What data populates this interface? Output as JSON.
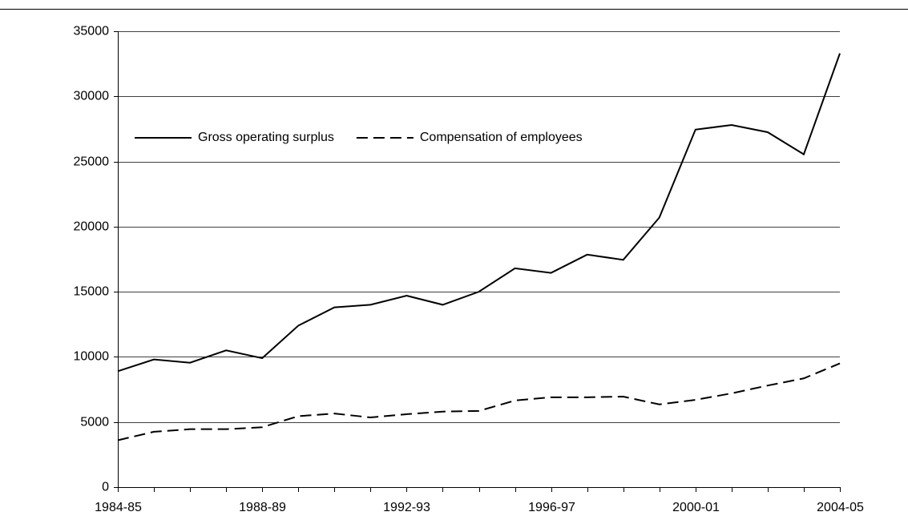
{
  "chart_data": {
    "type": "line",
    "categories": [
      "1984-85",
      null,
      null,
      null,
      "1988-89",
      null,
      null,
      null,
      "1992-93",
      null,
      null,
      null,
      "1996-97",
      null,
      null,
      null,
      "2000-01",
      null,
      null,
      null,
      "2004-05"
    ],
    "series": [
      {
        "name": "Gross operating surplus",
        "color": "#000000",
        "linestyle": "solid",
        "values": [
          8900,
          9800,
          9550,
          10500,
          9900,
          12400,
          13800,
          14000,
          14700,
          14000,
          15000,
          16800,
          16450,
          17850,
          17450,
          20700,
          27450,
          27800,
          27250,
          25550,
          33300
        ]
      },
      {
        "name": "Compensation of employees",
        "color": "#000000",
        "linestyle": "dashed",
        "values": [
          3600,
          4250,
          4450,
          4450,
          4600,
          5450,
          5650,
          5350,
          5600,
          5800,
          5850,
          6650,
          6900,
          6900,
          6950,
          6350,
          6700,
          7200,
          7800,
          8350,
          9500
        ]
      }
    ],
    "ylim": [
      0,
      35000
    ],
    "yticks": [
      0,
      5000,
      10000,
      15000,
      20000,
      25000,
      30000,
      35000
    ],
    "grid": true,
    "legend": "upper left"
  }
}
